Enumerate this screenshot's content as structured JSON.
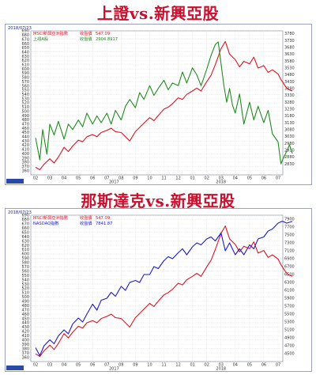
{
  "titles": {
    "top": "上證vs.新興亞股",
    "bottom": "那斯達克vs.新興亞股"
  },
  "chart_data": [
    {
      "type": "line",
      "date": "2018/07/23",
      "left_axis": {
        "min": 350,
        "max": 690,
        "ticks": [
          360,
          370,
          380,
          390,
          400,
          410,
          420,
          430,
          440,
          450,
          460,
          470,
          480,
          490,
          500,
          510,
          520,
          530,
          540,
          550,
          560,
          570,
          580,
          590,
          600,
          610,
          620,
          630,
          640,
          650,
          660,
          670,
          680,
          690
        ]
      },
      "right_axis": {
        "min": 2750,
        "max": 3800,
        "ticks": [
          2830,
          2880,
          2930,
          2980,
          3030,
          3080,
          3130,
          3180,
          3230,
          3280,
          3330,
          3380,
          3430,
          3480,
          3530,
          3580,
          3630,
          3680,
          3730,
          3780
        ]
      },
      "x_ticks": [
        "02",
        "03",
        "04",
        "05",
        "06",
        "07",
        "08",
        "09",
        "10",
        "11",
        "12",
        "01",
        "02",
        "03",
        "04",
        "05",
        "06",
        "07"
      ],
      "year_labels": [
        {
          "label": "2017",
          "index": 5.5
        },
        {
          "label": "2018",
          "index": 13
        }
      ],
      "legend": [
        {
          "name": "MSCI新興亞洲指數",
          "value_label": "收盤價",
          "value": "547.09"
        },
        {
          "name": "上證A股",
          "value_label": "收盤價",
          "value": "2904.8917"
        }
      ],
      "series": [
        {
          "name": "MSCI新興亞洲指數",
          "axis": "left",
          "color": "#e0141e",
          "points": [
            [
              0,
              368
            ],
            [
              0.3,
              362
            ],
            [
              0.6,
              375
            ],
            [
              1,
              388
            ],
            [
              1.3,
              378
            ],
            [
              1.6,
              392
            ],
            [
              2,
              415
            ],
            [
              2.3,
              405
            ],
            [
              2.6,
              418
            ],
            [
              3,
              432
            ],
            [
              3.3,
              428
            ],
            [
              3.6,
              440
            ],
            [
              4,
              445
            ],
            [
              4.3,
              440
            ],
            [
              4.6,
              450
            ],
            [
              5,
              455
            ],
            [
              5.3,
              460
            ],
            [
              5.6,
              452
            ],
            [
              6,
              450
            ],
            [
              6.3,
              440
            ],
            [
              6.6,
              430
            ],
            [
              7,
              452
            ],
            [
              7.3,
              462
            ],
            [
              7.6,
              472
            ],
            [
              8,
              485
            ],
            [
              8.3,
              478
            ],
            [
              8.6,
              490
            ],
            [
              9,
              505
            ],
            [
              9.3,
              510
            ],
            [
              9.6,
              518
            ],
            [
              10,
              532
            ],
            [
              10.3,
              528
            ],
            [
              10.6,
              540
            ],
            [
              11,
              548
            ],
            [
              11.3,
              555
            ],
            [
              11.6,
              548
            ],
            [
              12,
              570
            ],
            [
              12.3,
              585
            ],
            [
              12.6,
              610
            ],
            [
              13,
              648
            ],
            [
              13.3,
              665
            ],
            [
              13.6,
              635
            ],
            [
              14,
              622
            ],
            [
              14.3,
              605
            ],
            [
              14.6,
              618
            ],
            [
              15,
              612
            ],
            [
              15.3,
              628
            ],
            [
              15.6,
              602
            ],
            [
              16,
              608
            ],
            [
              16.3,
              592
            ],
            [
              16.6,
              598
            ],
            [
              17,
              588
            ],
            [
              17.2,
              575
            ],
            [
              17.5,
              560
            ],
            [
              17.7,
              552
            ],
            [
              18,
              548
            ]
          ]
        },
        {
          "name": "上證A股",
          "axis": "right",
          "color": "#1e8c1e",
          "points": [
            [
              0,
              3020
            ],
            [
              0.3,
              2860
            ],
            [
              0.5,
              3080
            ],
            [
              0.8,
              2900
            ],
            [
              1,
              3120
            ],
            [
              1.3,
              3040
            ],
            [
              1.6,
              3140
            ],
            [
              2,
              3010
            ],
            [
              2.3,
              3120
            ],
            [
              2.6,
              3080
            ],
            [
              3,
              3150
            ],
            [
              3.3,
              3100
            ],
            [
              3.6,
              3200
            ],
            [
              4,
              3120
            ],
            [
              4.3,
              3180
            ],
            [
              4.6,
              3130
            ],
            [
              5,
              3200
            ],
            [
              5.3,
              3120
            ],
            [
              5.6,
              3220
            ],
            [
              6,
              3150
            ],
            [
              6.3,
              3250
            ],
            [
              6.6,
              3300
            ],
            [
              7,
              3240
            ],
            [
              7.3,
              3350
            ],
            [
              7.6,
              3300
            ],
            [
              8,
              3400
            ],
            [
              8.3,
              3330
            ],
            [
              8.6,
              3380
            ],
            [
              9,
              3440
            ],
            [
              9.3,
              3370
            ],
            [
              9.6,
              3420
            ],
            [
              10,
              3400
            ],
            [
              10.3,
              3500
            ],
            [
              10.6,
              3420
            ],
            [
              11,
              3530
            ],
            [
              11.3,
              3480
            ],
            [
              11.6,
              3400
            ],
            [
              12,
              3520
            ],
            [
              12.3,
              3620
            ],
            [
              12.6,
              3700
            ],
            [
              12.8,
              3720
            ],
            [
              13,
              3560
            ],
            [
              13.2,
              3400
            ],
            [
              13.4,
              3280
            ],
            [
              13.6,
              3380
            ],
            [
              13.8,
              3260
            ],
            [
              14,
              3200
            ],
            [
              14.3,
              3340
            ],
            [
              14.6,
              3120
            ],
            [
              15,
              3280
            ],
            [
              15.3,
              3150
            ],
            [
              15.6,
              3250
            ],
            [
              16,
              3130
            ],
            [
              16.3,
              3220
            ],
            [
              16.6,
              3050
            ],
            [
              17,
              2990
            ],
            [
              17.2,
              2830
            ],
            [
              17.4,
              2880
            ],
            [
              17.6,
              2920
            ],
            [
              17.8,
              2970
            ],
            [
              18,
              2905
            ]
          ]
        }
      ]
    },
    {
      "type": "line",
      "date": "2018/07/23",
      "left_axis": {
        "min": 350,
        "max": 690,
        "ticks": [
          360,
          370,
          380,
          390,
          400,
          410,
          420,
          430,
          440,
          450,
          460,
          470,
          480,
          490,
          500,
          510,
          520,
          530,
          540,
          550,
          560,
          570,
          580,
          590,
          600,
          610,
          620,
          630,
          640,
          650,
          660,
          670,
          680,
          690
        ]
      },
      "right_axis": {
        "min": 4300,
        "max": 8000,
        "ticks": [
          4500,
          4700,
          4900,
          5100,
          5300,
          5500,
          5700,
          5900,
          6100,
          6300,
          6500,
          6700,
          6900,
          7100,
          7300,
          7500,
          7700,
          7900
        ]
      },
      "x_ticks": [
        "02",
        "03",
        "04",
        "05",
        "06",
        "07",
        "08",
        "09",
        "10",
        "11",
        "12",
        "01",
        "02",
        "03",
        "04",
        "05",
        "06",
        "07"
      ],
      "year_labels": [
        {
          "label": "2017",
          "index": 5.5
        },
        {
          "label": "2018",
          "index": 13
        }
      ],
      "legend": [
        {
          "name": "MSCI新興亞洲指數",
          "value_label": "收盤價",
          "value": "547.09"
        },
        {
          "name": "NASDAQ指數",
          "value_label": "收盤價",
          "value": "7841.87"
        }
      ],
      "series": [
        {
          "name": "MSCI新興亞洲指數",
          "axis": "left",
          "color": "#e0141e",
          "points": [
            [
              0,
              368
            ],
            [
              0.3,
              362
            ],
            [
              0.6,
              375
            ],
            [
              1,
              388
            ],
            [
              1.3,
              378
            ],
            [
              1.6,
              392
            ],
            [
              2,
              415
            ],
            [
              2.3,
              405
            ],
            [
              2.6,
              418
            ],
            [
              3,
              432
            ],
            [
              3.3,
              428
            ],
            [
              3.6,
              440
            ],
            [
              4,
              445
            ],
            [
              4.3,
              440
            ],
            [
              4.6,
              450
            ],
            [
              5,
              455
            ],
            [
              5.3,
              460
            ],
            [
              5.6,
              452
            ],
            [
              6,
              450
            ],
            [
              6.3,
              440
            ],
            [
              6.6,
              430
            ],
            [
              7,
              452
            ],
            [
              7.3,
              462
            ],
            [
              7.6,
              472
            ],
            [
              8,
              485
            ],
            [
              8.3,
              478
            ],
            [
              8.6,
              490
            ],
            [
              9,
              505
            ],
            [
              9.3,
              510
            ],
            [
              9.6,
              518
            ],
            [
              10,
              532
            ],
            [
              10.3,
              528
            ],
            [
              10.6,
              540
            ],
            [
              11,
              548
            ],
            [
              11.3,
              555
            ],
            [
              11.6,
              548
            ],
            [
              12,
              570
            ],
            [
              12.3,
              585
            ],
            [
              12.6,
              610
            ],
            [
              13,
              648
            ],
            [
              13.3,
              665
            ],
            [
              13.6,
              635
            ],
            [
              14,
              622
            ],
            [
              14.3,
              605
            ],
            [
              14.6,
              618
            ],
            [
              15,
              612
            ],
            [
              15.3,
              628
            ],
            [
              15.6,
              602
            ],
            [
              16,
              608
            ],
            [
              16.3,
              592
            ],
            [
              16.6,
              598
            ],
            [
              17,
              588
            ],
            [
              17.2,
              575
            ],
            [
              17.5,
              560
            ],
            [
              17.7,
              552
            ],
            [
              18,
              548
            ]
          ]
        },
        {
          "name": "NASDAQ指數",
          "axis": "right",
          "color": "#1a1ad2",
          "points": [
            [
              0,
              4650
            ],
            [
              0.3,
              4450
            ],
            [
              0.6,
              4700
            ],
            [
              1,
              4850
            ],
            [
              1.3,
              4750
            ],
            [
              1.6,
              4950
            ],
            [
              2,
              5100
            ],
            [
              2.3,
              5000
            ],
            [
              2.6,
              5250
            ],
            [
              3,
              5400
            ],
            [
              3.3,
              5300
            ],
            [
              3.6,
              5500
            ],
            [
              4,
              5750
            ],
            [
              4.3,
              5600
            ],
            [
              4.6,
              5850
            ],
            [
              5,
              5900
            ],
            [
              5.3,
              6050
            ],
            [
              5.6,
              5950
            ],
            [
              6,
              6200
            ],
            [
              6.3,
              6100
            ],
            [
              6.6,
              6300
            ],
            [
              7,
              6350
            ],
            [
              7.3,
              6300
            ],
            [
              7.6,
              6500
            ],
            [
              8,
              6500
            ],
            [
              8.3,
              6700
            ],
            [
              8.6,
              6650
            ],
            [
              9,
              6850
            ],
            [
              9.3,
              6950
            ],
            [
              9.6,
              6900
            ],
            [
              10,
              7050
            ],
            [
              10.3,
              7150
            ],
            [
              10.6,
              7000
            ],
            [
              11,
              7200
            ],
            [
              11.3,
              7300
            ],
            [
              11.6,
              7250
            ],
            [
              12,
              7400
            ],
            [
              12.3,
              7450
            ],
            [
              12.6,
              7350
            ],
            [
              13,
              7550
            ],
            [
              13.3,
              7100
            ],
            [
              13.6,
              7300
            ],
            [
              14,
              7000
            ],
            [
              14.3,
              7150
            ],
            [
              14.6,
              7000
            ],
            [
              15,
              7250
            ],
            [
              15.3,
              7150
            ],
            [
              15.6,
              7400
            ],
            [
              16,
              7450
            ],
            [
              16.3,
              7600
            ],
            [
              16.6,
              7650
            ],
            [
              17,
              7800
            ],
            [
              17.3,
              7850
            ],
            [
              17.6,
              7800
            ],
            [
              18,
              7842
            ]
          ]
        }
      ]
    }
  ]
}
